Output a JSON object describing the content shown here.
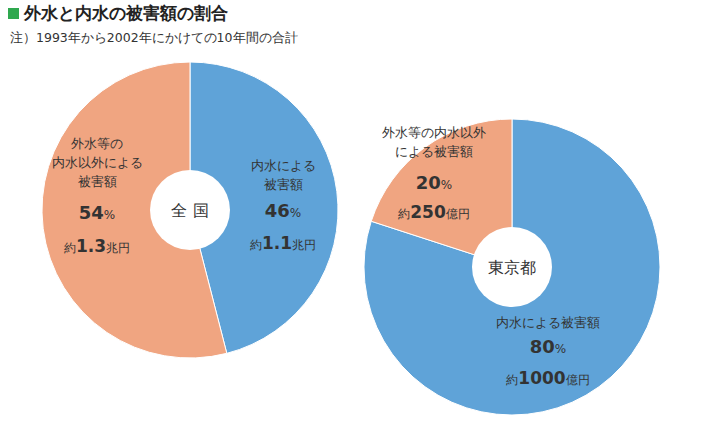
{
  "header": {
    "title": "外水と内水の被害額の割合",
    "note": "注）1993年から2002年にかけての10年間の合計"
  },
  "chart_data": [
    {
      "type": "pie",
      "title": "全 国",
      "categories": [
        "内水による\n被害額",
        "外水等の\n内水以外による\n被害額"
      ],
      "values": [
        46,
        54
      ],
      "value_labels": [
        "46%",
        "54%"
      ],
      "amount_labels": [
        "約1.1兆円",
        "約1.3兆円"
      ],
      "colors": [
        "#5fa3d8",
        "#f0a581"
      ],
      "data_labels": true
    },
    {
      "type": "pie",
      "title": "東京都",
      "categories": [
        "内水による被害額",
        "外水等の内水以外\nによる被害額"
      ],
      "values": [
        80,
        20
      ],
      "value_labels": [
        "80%",
        "20%"
      ],
      "amount_labels": [
        "約1000億円",
        "約250億円"
      ],
      "colors": [
        "#5fa3d8",
        "#f0a581"
      ],
      "data_labels": true
    }
  ]
}
